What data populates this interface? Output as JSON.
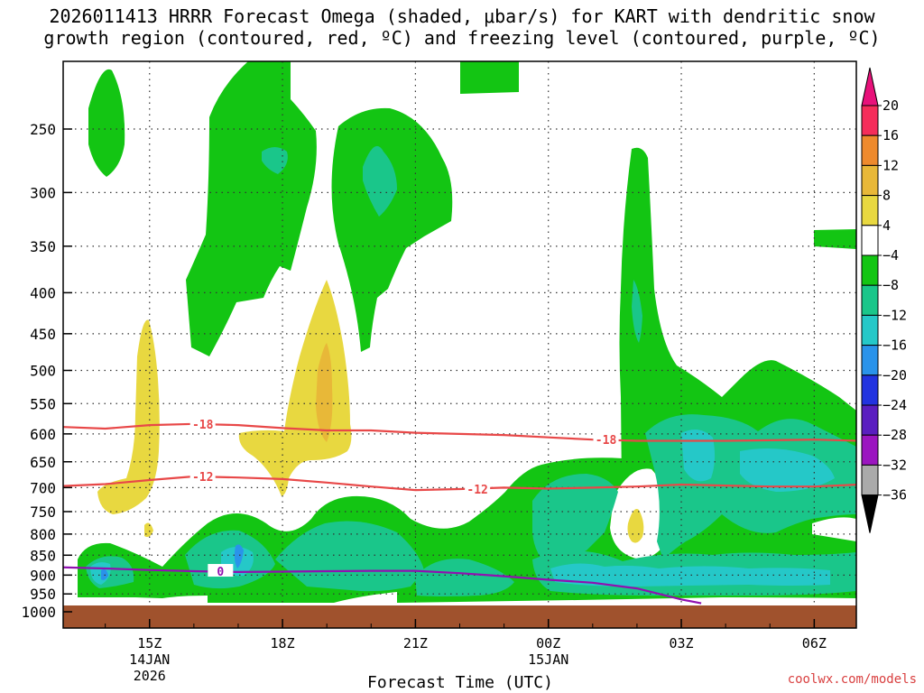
{
  "chart_data": {
    "type": "heatmap",
    "title": "2026011413 HRRR Forecast Omega (shaded, μbar/s) for KART with dendritic snow\ngrowth region (contoured, red, ºC) and freezing level (contoured, purple, ºC)",
    "xlabel": "Forecast Time (UTC)",
    "credit": "coolwx.com/models",
    "y_axis": {
      "scale": "pressure",
      "reversed": true,
      "ticks": [
        250,
        300,
        350,
        400,
        450,
        500,
        550,
        600,
        650,
        700,
        750,
        800,
        850,
        900,
        950,
        1000
      ]
    },
    "x_axis": {
      "ticks": [
        {
          "hour": 15,
          "label": "15Z",
          "sub1": "14JAN",
          "sub2": "2026"
        },
        {
          "hour": 18,
          "label": "18Z",
          "sub1": "",
          "sub2": ""
        },
        {
          "hour": 21,
          "label": "21Z",
          "sub1": "",
          "sub2": ""
        },
        {
          "hour": 24,
          "label": "00Z",
          "sub1": "15JAN",
          "sub2": ""
        },
        {
          "hour": 27,
          "label": "03Z",
          "sub1": "",
          "sub2": ""
        },
        {
          "hour": 30,
          "label": "06Z",
          "sub1": "",
          "sub2": ""
        }
      ],
      "range_hours": [
        13.05,
        30.95
      ]
    },
    "grid": true,
    "colorbar": {
      "levels": [
        20,
        16,
        12,
        8,
        4,
        -4,
        -8,
        -12,
        -16,
        -20,
        -24,
        -28,
        -32,
        -36
      ],
      "colors": [
        "#f52d5a",
        "#ee8a2d",
        "#e8b838",
        "#e8d840",
        "#ffffff",
        "#13c513",
        "#1ac68a",
        "#25c8c8",
        "#2a93ea",
        "#2233e0",
        "#5a1ec0",
        "#9b15c0",
        "#aaaaaa"
      ],
      "top_arrow_color": "#e8117a",
      "bottom_arrow_color": "#000000"
    },
    "contour_labels": {
      "dgz_upper": "-18",
      "dgz_lower": "-12",
      "freezing": "0"
    },
    "series": [
      {
        "name": "-18",
        "x": [
          13,
          14,
          15,
          16,
          17,
          18,
          19,
          20,
          21,
          22,
          23,
          24,
          25,
          26,
          27,
          28,
          29,
          30,
          31
        ],
        "y": [
          588,
          591,
          585,
          583,
          585,
          590,
          594,
          594,
          598,
          600,
          602,
          606,
          610,
          612,
          612,
          612,
          611,
          610,
          612
        ],
        "color": "#e84848"
      },
      {
        "name": "-12",
        "x": [
          13,
          14,
          15,
          16,
          17,
          18,
          19,
          20,
          21,
          22,
          23,
          24,
          25,
          26,
          27,
          28,
          29,
          30,
          31
        ],
        "y": [
          697,
          693,
          685,
          678,
          680,
          683,
          690,
          698,
          705,
          703,
          700,
          702,
          700,
          698,
          694,
          696,
          698,
          698,
          694
        ],
        "color": "#e84848"
      },
      {
        "name": "0",
        "x": [
          13,
          14,
          15,
          16,
          17,
          18,
          19,
          20,
          21,
          22,
          23,
          24,
          25,
          26,
          27,
          27.45
        ],
        "y": [
          880,
          883,
          887,
          890,
          892,
          891,
          890,
          889,
          889,
          895,
          903,
          912,
          920,
          935,
          965,
          976
        ],
        "color": "#9010b0"
      }
    ]
  }
}
